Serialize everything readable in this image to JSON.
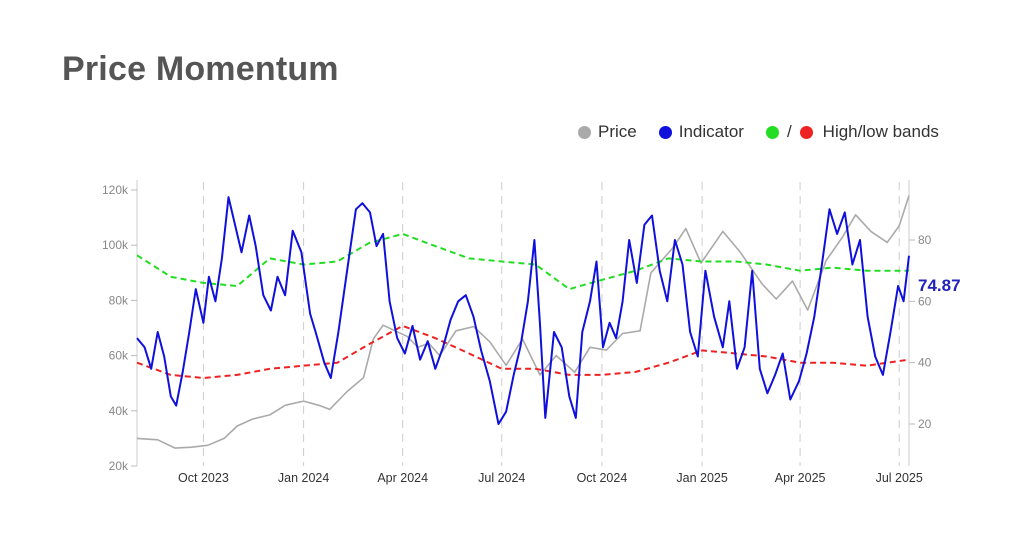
{
  "title": "Price Momentum",
  "legend": {
    "price": "Price",
    "indicator": "Indicator",
    "bands_sep": "/",
    "bands": "High/low bands"
  },
  "colors": {
    "price": "#aaaaaa",
    "indicator": "#1010dd",
    "high_band": "#22dd22",
    "low_band": "#ee2222",
    "grid": "#cccccc"
  },
  "chart_data": {
    "type": "line",
    "title": "Price Momentum",
    "legend_position": "top-right",
    "x_ticks": [
      "Oct 2023",
      "Jan 2024",
      "Apr 2024",
      "Jul 2024",
      "Oct 2024",
      "Jan 2025",
      "Apr 2025",
      "Jul 2025"
    ],
    "x_tick_dates": [
      "2023-10-01",
      "2024-01-01",
      "2024-04-01",
      "2024-07-01",
      "2024-10-01",
      "2025-01-01",
      "2025-04-01",
      "2025-07-01"
    ],
    "x_range": [
      "2023-08-01",
      "2025-07-10"
    ],
    "y_left": {
      "ticks": [
        "20k",
        "40k",
        "60k",
        "80k",
        "100k",
        "120k"
      ],
      "range": [
        20000,
        120000
      ]
    },
    "y_right": {
      "ticks": [
        "20",
        "40",
        "60",
        "80"
      ],
      "range": [
        10,
        100
      ]
    },
    "last_value_label": "74.87",
    "grid": "vertical dashed",
    "series": [
      {
        "name": "Price",
        "axis": "left",
        "points": [
          [
            "2023-08-01",
            30000
          ],
          [
            "2023-08-20",
            29500
          ],
          [
            "2023-09-05",
            26500
          ],
          [
            "2023-09-20",
            26800
          ],
          [
            "2023-10-05",
            27500
          ],
          [
            "2023-10-20",
            30000
          ],
          [
            "2023-11-01",
            34500
          ],
          [
            "2023-11-15",
            37000
          ],
          [
            "2023-12-01",
            38500
          ],
          [
            "2023-12-15",
            42000
          ],
          [
            "2024-01-01",
            43500
          ],
          [
            "2024-01-15",
            42000
          ],
          [
            "2024-01-25",
            40500
          ],
          [
            "2024-02-10",
            47000
          ],
          [
            "2024-02-25",
            52000
          ],
          [
            "2024-03-05",
            66000
          ],
          [
            "2024-03-14",
            71000
          ],
          [
            "2024-03-25",
            69000
          ],
          [
            "2024-04-05",
            67000
          ],
          [
            "2024-04-15",
            63000
          ],
          [
            "2024-04-25",
            64500
          ],
          [
            "2024-05-05",
            60000
          ],
          [
            "2024-05-20",
            69000
          ],
          [
            "2024-06-05",
            70500
          ],
          [
            "2024-06-20",
            65000
          ],
          [
            "2024-07-05",
            56500
          ],
          [
            "2024-07-20",
            66000
          ],
          [
            "2024-08-05",
            53000
          ],
          [
            "2024-08-20",
            60000
          ],
          [
            "2024-09-06",
            54000
          ],
          [
            "2024-09-20",
            63000
          ],
          [
            "2024-10-05",
            62000
          ],
          [
            "2024-10-20",
            68000
          ],
          [
            "2024-11-05",
            69000
          ],
          [
            "2024-11-15",
            90000
          ],
          [
            "2024-12-05",
            99000
          ],
          [
            "2024-12-17",
            106000
          ],
          [
            "2024-12-31",
            93500
          ],
          [
            "2025-01-20",
            105000
          ],
          [
            "2025-02-05",
            97500
          ],
          [
            "2025-02-25",
            86000
          ],
          [
            "2025-03-10",
            80500
          ],
          [
            "2025-03-25",
            87000
          ],
          [
            "2025-04-08",
            76500
          ],
          [
            "2025-04-25",
            94500
          ],
          [
            "2025-05-10",
            103000
          ],
          [
            "2025-05-22",
            111000
          ],
          [
            "2025-06-05",
            105000
          ],
          [
            "2025-06-20",
            101000
          ],
          [
            "2025-07-01",
            107000
          ],
          [
            "2025-07-10",
            118000
          ]
        ]
      },
      {
        "name": "Indicator",
        "axis": "right",
        "points": [
          [
            "2023-08-01",
            48
          ],
          [
            "2023-08-08",
            45
          ],
          [
            "2023-08-14",
            38
          ],
          [
            "2023-08-20",
            50
          ],
          [
            "2023-08-26",
            42
          ],
          [
            "2023-09-01",
            29
          ],
          [
            "2023-09-06",
            26
          ],
          [
            "2023-09-12",
            37
          ],
          [
            "2023-09-18",
            50
          ],
          [
            "2023-09-24",
            64
          ],
          [
            "2023-10-01",
            53
          ],
          [
            "2023-10-06",
            68
          ],
          [
            "2023-10-12",
            60
          ],
          [
            "2023-10-18",
            74
          ],
          [
            "2023-10-24",
            94
          ],
          [
            "2023-10-30",
            85
          ],
          [
            "2023-11-05",
            76
          ],
          [
            "2023-11-12",
            88
          ],
          [
            "2023-11-18",
            78
          ],
          [
            "2023-11-25",
            62
          ],
          [
            "2023-12-02",
            57
          ],
          [
            "2023-12-08",
            68
          ],
          [
            "2023-12-15",
            62
          ],
          [
            "2023-12-22",
            83
          ],
          [
            "2023-12-30",
            76
          ],
          [
            "2024-01-07",
            56
          ],
          [
            "2024-01-12",
            50
          ],
          [
            "2024-01-20",
            40
          ],
          [
            "2024-01-26",
            35
          ],
          [
            "2024-02-02",
            50
          ],
          [
            "2024-02-10",
            70
          ],
          [
            "2024-02-18",
            90
          ],
          [
            "2024-02-24",
            92
          ],
          [
            "2024-03-02",
            89
          ],
          [
            "2024-03-08",
            78
          ],
          [
            "2024-03-14",
            82
          ],
          [
            "2024-03-20",
            60
          ],
          [
            "2024-03-27",
            48
          ],
          [
            "2024-04-03",
            43
          ],
          [
            "2024-04-10",
            52
          ],
          [
            "2024-04-17",
            41
          ],
          [
            "2024-04-24",
            47
          ],
          [
            "2024-05-01",
            38
          ],
          [
            "2024-05-08",
            45
          ],
          [
            "2024-05-15",
            54
          ],
          [
            "2024-05-22",
            60
          ],
          [
            "2024-05-29",
            62
          ],
          [
            "2024-06-05",
            55
          ],
          [
            "2024-06-12",
            44
          ],
          [
            "2024-06-20",
            34
          ],
          [
            "2024-06-28",
            20
          ],
          [
            "2024-07-05",
            24
          ],
          [
            "2024-07-12",
            36
          ],
          [
            "2024-07-18",
            45
          ],
          [
            "2024-07-25",
            60
          ],
          [
            "2024-07-31",
            80
          ],
          [
            "2024-08-05",
            53
          ],
          [
            "2024-08-10",
            22
          ],
          [
            "2024-08-18",
            50
          ],
          [
            "2024-08-25",
            45
          ],
          [
            "2024-09-01",
            29
          ],
          [
            "2024-09-07",
            22
          ],
          [
            "2024-09-13",
            50
          ],
          [
            "2024-09-20",
            60
          ],
          [
            "2024-09-26",
            73
          ],
          [
            "2024-10-02",
            45
          ],
          [
            "2024-10-08",
            53
          ],
          [
            "2024-10-14",
            48
          ],
          [
            "2024-10-20",
            60
          ],
          [
            "2024-10-26",
            80
          ],
          [
            "2024-11-02",
            66
          ],
          [
            "2024-11-09",
            85
          ],
          [
            "2024-11-16",
            88
          ],
          [
            "2024-11-23",
            70
          ],
          [
            "2024-11-30",
            60
          ],
          [
            "2024-12-07",
            80
          ],
          [
            "2024-12-14",
            72
          ],
          [
            "2024-12-21",
            50
          ],
          [
            "2024-12-28",
            42
          ],
          [
            "2025-01-04",
            70
          ],
          [
            "2025-01-12",
            55
          ],
          [
            "2025-01-20",
            45
          ],
          [
            "2025-01-26",
            60
          ],
          [
            "2025-02-02",
            38
          ],
          [
            "2025-02-09",
            45
          ],
          [
            "2025-02-16",
            70
          ],
          [
            "2025-02-23",
            38
          ],
          [
            "2025-03-02",
            30
          ],
          [
            "2025-03-09",
            36
          ],
          [
            "2025-03-16",
            43
          ],
          [
            "2025-03-23",
            28
          ],
          [
            "2025-03-31",
            34
          ],
          [
            "2025-04-07",
            43
          ],
          [
            "2025-04-14",
            55
          ],
          [
            "2025-04-21",
            72
          ],
          [
            "2025-04-28",
            90
          ],
          [
            "2025-05-05",
            82
          ],
          [
            "2025-05-12",
            89
          ],
          [
            "2025-05-19",
            72
          ],
          [
            "2025-05-26",
            80
          ],
          [
            "2025-06-02",
            55
          ],
          [
            "2025-06-09",
            42
          ],
          [
            "2025-06-16",
            36
          ],
          [
            "2025-06-23",
            50
          ],
          [
            "2025-06-30",
            65
          ],
          [
            "2025-07-05",
            60
          ],
          [
            "2025-07-10",
            74.87
          ]
        ]
      },
      {
        "name": "High band",
        "axis": "right",
        "points": [
          [
            "2023-08-01",
            75
          ],
          [
            "2023-09-01",
            68
          ],
          [
            "2023-10-01",
            66
          ],
          [
            "2023-11-01",
            65
          ],
          [
            "2023-12-01",
            74
          ],
          [
            "2024-01-01",
            72
          ],
          [
            "2024-02-01",
            73
          ],
          [
            "2024-03-01",
            79
          ],
          [
            "2024-04-01",
            82
          ],
          [
            "2024-05-01",
            78
          ],
          [
            "2024-06-01",
            74
          ],
          [
            "2024-07-01",
            73
          ],
          [
            "2024-08-01",
            72
          ],
          [
            "2024-09-01",
            64
          ],
          [
            "2024-10-01",
            67
          ],
          [
            "2024-11-01",
            70
          ],
          [
            "2024-12-01",
            74
          ],
          [
            "2025-01-01",
            73
          ],
          [
            "2025-02-01",
            73
          ],
          [
            "2025-03-01",
            72
          ],
          [
            "2025-04-01",
            70
          ],
          [
            "2025-05-01",
            71
          ],
          [
            "2025-06-01",
            70
          ],
          [
            "2025-07-10",
            70
          ]
        ]
      },
      {
        "name": "Low band",
        "axis": "right",
        "points": [
          [
            "2023-08-01",
            40
          ],
          [
            "2023-09-01",
            36
          ],
          [
            "2023-10-01",
            35
          ],
          [
            "2023-11-01",
            36
          ],
          [
            "2023-12-01",
            38
          ],
          [
            "2024-01-01",
            39
          ],
          [
            "2024-02-01",
            40
          ],
          [
            "2024-03-01",
            46
          ],
          [
            "2024-04-01",
            52
          ],
          [
            "2024-05-01",
            48
          ],
          [
            "2024-06-01",
            43
          ],
          [
            "2024-07-01",
            38
          ],
          [
            "2024-08-01",
            38
          ],
          [
            "2024-09-01",
            36
          ],
          [
            "2024-10-01",
            36
          ],
          [
            "2024-11-01",
            37
          ],
          [
            "2024-12-01",
            40
          ],
          [
            "2025-01-01",
            44
          ],
          [
            "2025-02-01",
            43
          ],
          [
            "2025-03-01",
            42
          ],
          [
            "2025-04-01",
            40
          ],
          [
            "2025-05-01",
            40
          ],
          [
            "2025-06-01",
            39
          ],
          [
            "2025-07-10",
            41
          ]
        ]
      }
    ]
  }
}
